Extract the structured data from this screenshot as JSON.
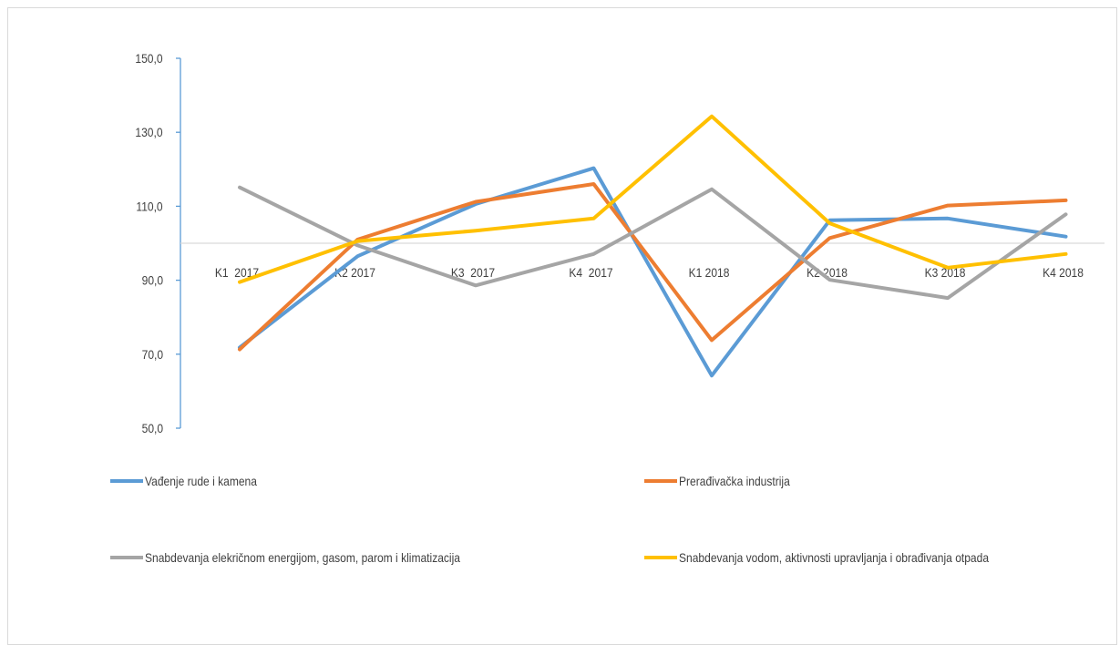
{
  "chart_data": {
    "type": "line",
    "title": "",
    "xlabel": "",
    "ylabel": "",
    "categories": [
      "K1  2017",
      "K2 2017",
      "K3  2017",
      "K4  2017",
      "K1 2018",
      "K2 2018",
      "K3 2018",
      "K4 2018"
    ],
    "y_ticks": [
      "50,0",
      "70,0",
      "90,0",
      "110,0",
      "130,0",
      "150,0"
    ],
    "ylim": [
      50,
      150
    ],
    "reference_value": 100,
    "grid": false,
    "legend_position": "bottom",
    "series": [
      {
        "name": "Vađenje rude i kamena",
        "color": "#5b9bd5",
        "values": [
          71.8,
          96.5,
          110.6,
          120.3,
          64.2,
          106.2,
          106.7,
          101.8
        ]
      },
      {
        "name": "Prerađivačka industrija",
        "color": "#ed7d31",
        "values": [
          71.3,
          101.0,
          111.2,
          116.0,
          73.8,
          101.4,
          110.2,
          111.6
        ]
      },
      {
        "name": "Snabdevanja elekričnom energijom, gasom, parom i klimatizacija",
        "color": "#a5a5a5",
        "values": [
          115.1,
          99.4,
          88.6,
          97.1,
          114.6,
          90.1,
          85.2,
          107.8
        ]
      },
      {
        "name": "Snabdevanja vodom, aktivnosti upravljanja i obrađivanja  otpada",
        "color": "#ffc000",
        "values": [
          89.5,
          100.6,
          103.4,
          106.7,
          134.3,
          105.4,
          93.4,
          97.1
        ]
      }
    ]
  }
}
